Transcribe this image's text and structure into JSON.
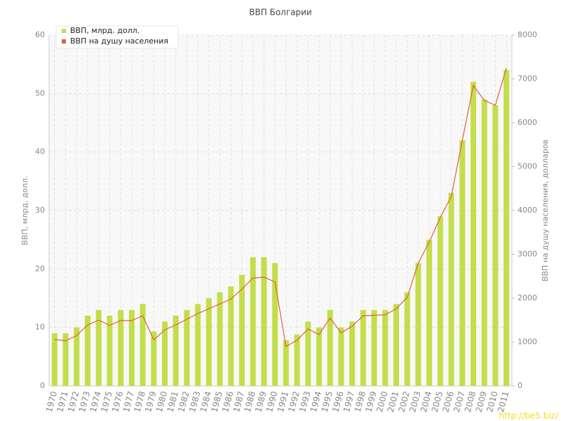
{
  "chart_data": {
    "type": "bar",
    "title": "ВВП Болгарии",
    "categories": [
      "1970",
      "1971",
      "1972",
      "1973",
      "1974",
      "1975",
      "1976",
      "1977",
      "1978",
      "1979",
      "1980",
      "1981",
      "1982",
      "1983",
      "1984",
      "1985",
      "1986",
      "1987",
      "1988",
      "1989",
      "1990",
      "1991",
      "1992",
      "1993",
      "1994",
      "1995",
      "1996",
      "1997",
      "1998",
      "1999",
      "2000",
      "2001",
      "2002",
      "2003",
      "2004",
      "2005",
      "2006",
      "2007",
      "2008",
      "2009",
      "2010",
      "2011"
    ],
    "series": [
      {
        "name": "ВВП, млрд. долл.",
        "color": "#c3de4a",
        "values": [
          9,
          9,
          10,
          12,
          13,
          12,
          13,
          13,
          14,
          9.3,
          11,
          12,
          13,
          14,
          15,
          16,
          17,
          19,
          22,
          22,
          21,
          7.8,
          8.8,
          11,
          10,
          13,
          10,
          11,
          13,
          13,
          13,
          14,
          16,
          21,
          25,
          29,
          33,
          42,
          52,
          49,
          48,
          54
        ]
      },
      {
        "name": "ВВП на душу населения",
        "color": "#e0603a",
        "type": "line",
        "axis": "y2",
        "values": [
          1060,
          1030,
          1150,
          1390,
          1500,
          1380,
          1490,
          1490,
          1600,
          1050,
          1280,
          1390,
          1520,
          1650,
          1760,
          1870,
          1980,
          2210,
          2460,
          2480,
          2370,
          900,
          1040,
          1300,
          1170,
          1550,
          1210,
          1360,
          1600,
          1610,
          1620,
          1760,
          2020,
          2800,
          3280,
          3840,
          4320,
          5600,
          6850,
          6510,
          6400,
          7250
        ]
      }
    ],
    "ylabel": "ВВП, млрд. долл.",
    "y2label": "ВВП на душу населения, долларов",
    "ylim": [
      0,
      60
    ],
    "yticks": [
      0,
      10,
      20,
      30,
      40,
      50,
      60
    ],
    "y2lim": [
      0,
      8000
    ],
    "y2ticks": [
      0,
      1000,
      2000,
      3000,
      4000,
      5000,
      6000,
      7000,
      8000
    ],
    "grid": true,
    "legend": "top-left",
    "watermark": "http://be5.biz/"
  }
}
